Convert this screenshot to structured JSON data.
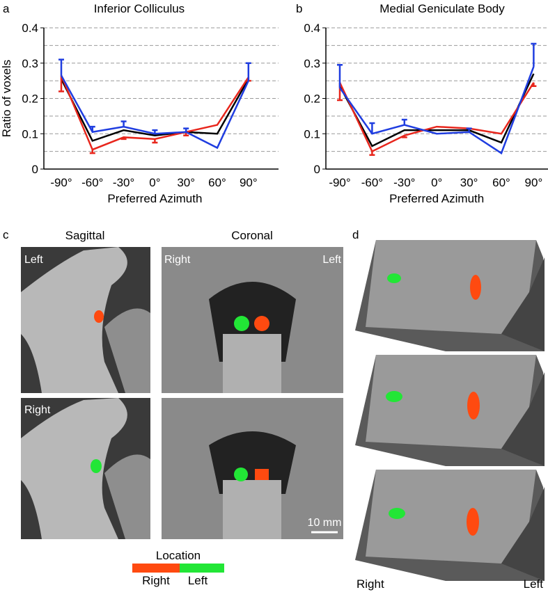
{
  "chart_data": [
    {
      "type": "line",
      "panel": "a",
      "title": "Inferior Colliculus",
      "xlabel": "Preferred Azimuth",
      "ylabel": "Ratio of voxels",
      "categories": [
        "-90°",
        "-60°",
        "-30°",
        "0°",
        "30°",
        "60°",
        "90°"
      ],
      "ylim": [
        0,
        0.4
      ],
      "yticks": [
        0,
        0.1,
        0.2,
        0.3,
        0.4
      ],
      "ygrid": [
        0.05,
        0.1,
        0.15,
        0.2,
        0.25,
        0.3,
        0.35,
        0.4
      ],
      "series": [
        {
          "color": "#000000",
          "values": [
            0.255,
            0.08,
            0.11,
            0.095,
            0.105,
            0.1,
            0.255
          ]
        },
        {
          "color": "#e8261c",
          "values": [
            0.265,
            0.055,
            0.09,
            0.085,
            0.105,
            0.125,
            0.26
          ],
          "errors": [
            0.045,
            0.01,
            0.005,
            0.01,
            0.01,
            null,
            0.01
          ],
          "error_direction": "down"
        },
        {
          "color": "#1f3de0",
          "values": [
            0.265,
            0.105,
            0.12,
            0.1,
            0.105,
            0.06,
            0.25
          ],
          "errors": [
            0.045,
            0.015,
            0.015,
            0.01,
            0.01,
            null,
            0.05
          ],
          "error_direction": "up"
        }
      ]
    },
    {
      "type": "line",
      "panel": "b",
      "title": "Medial Geniculate Body",
      "xlabel": "Preferred Azimuth",
      "categories": [
        "-90°",
        "-60°",
        "-30°",
        "0°",
        "30°",
        "60°",
        "90°"
      ],
      "ylim": [
        0,
        0.4
      ],
      "yticks": [
        0,
        0.1,
        0.2,
        0.3,
        0.4
      ],
      "ygrid": [
        0.05,
        0.1,
        0.15,
        0.2,
        0.25,
        0.3,
        0.35,
        0.4
      ],
      "series": [
        {
          "color": "#000000",
          "values": [
            0.235,
            0.065,
            0.11,
            0.11,
            0.11,
            0.075,
            0.27
          ]
        },
        {
          "color": "#e8261c",
          "values": [
            0.245,
            0.05,
            0.095,
            0.12,
            0.115,
            0.1,
            0.245
          ],
          "errors": [
            0.05,
            0.01,
            0.005,
            null,
            null,
            null,
            0.01
          ],
          "error_direction": "down"
        },
        {
          "color": "#1f3de0",
          "values": [
            0.23,
            0.1,
            0.125,
            0.1,
            0.105,
            0.045,
            0.29
          ],
          "errors": [
            0.065,
            0.03,
            0.015,
            null,
            0.01,
            null,
            0.065
          ],
          "error_direction": "up"
        }
      ]
    }
  ],
  "panel_c": {
    "label": "c",
    "sagittal": "Sagittal",
    "coronal": "Coronal",
    "image_labels": [
      "Left",
      "Right",
      "Left",
      "Right"
    ],
    "scale_bar": "10 mm",
    "legend": {
      "title": "Location",
      "right": "Right",
      "left": "Left"
    }
  },
  "panel_d": {
    "label": "d",
    "bottom_left": "Right",
    "bottom_right": "Left"
  }
}
